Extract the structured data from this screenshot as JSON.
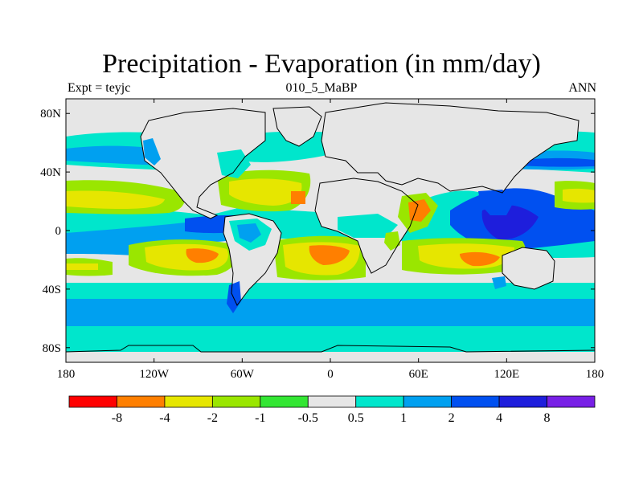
{
  "title": "Precipitation - Evaporation (in mm/day)",
  "subtitle_left": "Expt = teyjc",
  "subtitle_center": "010_5_MaBP",
  "subtitle_right": "ANN",
  "map": {
    "lon_range": [
      -180,
      180
    ],
    "lat_range": [
      -90,
      90
    ],
    "x_ticks": [
      {
        "lon": -180,
        "label": "180"
      },
      {
        "lon": -120,
        "label": "120W"
      },
      {
        "lon": -60,
        "label": "60W"
      },
      {
        "lon": 0,
        "label": "0"
      },
      {
        "lon": 60,
        "label": "60E"
      },
      {
        "lon": 120,
        "label": "120E"
      },
      {
        "lon": 180,
        "label": "180"
      }
    ],
    "y_ticks": [
      {
        "lat": 80,
        "label": "80N"
      },
      {
        "lat": 40,
        "label": "40N"
      },
      {
        "lat": 0,
        "label": "0"
      },
      {
        "lat": -40,
        "label": "40S"
      },
      {
        "lat": -80,
        "label": "80S"
      }
    ]
  },
  "colorbar": {
    "colors": [
      "#ff0000",
      "#ff7f00",
      "#e6e600",
      "#9ae600",
      "#33e633",
      "#e6e6e6",
      "#00e6cc",
      "#00a0f0",
      "#0050f0",
      "#1e1edc",
      "#7820e6"
    ],
    "labels": [
      "-8",
      "-4",
      "-2",
      "-1",
      "-0.5",
      "0.5",
      "1",
      "2",
      "4",
      "8"
    ]
  }
}
